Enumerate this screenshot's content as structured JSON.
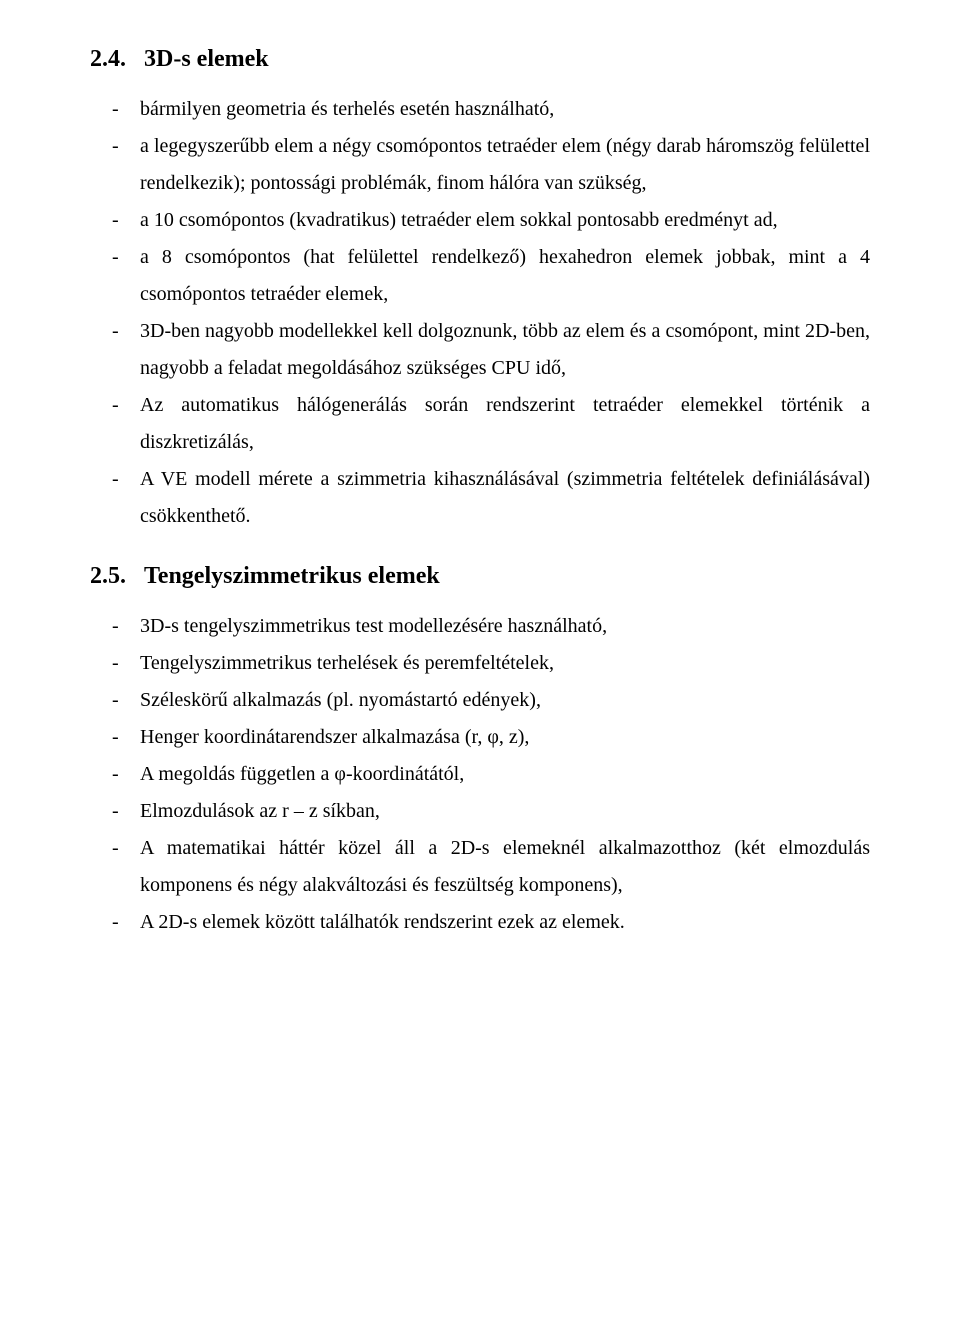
{
  "section24": {
    "number": "2.4.",
    "title": "3D-s elemek",
    "items": [
      "bármilyen geometria és terhelés esetén használható,",
      "a legegyszerűbb elem a négy csomópontos tetraéder elem (négy darab háromszög felülettel rendelkezik); pontossági problémák, finom hálóra van szükség,",
      "a 10 csomópontos (kvadratikus) tetraéder elem sokkal pontosabb eredményt ad,",
      "a 8 csomópontos (hat felülettel rendelkező) hexahedron elemek jobbak, mint a 4 csomópontos tetraéder elemek,",
      "3D-ben nagyobb modellekkel kell dolgoznunk, több az elem és a csomópont, mint 2D-ben, nagyobb a feladat megoldásához szükséges CPU idő,",
      "Az automatikus hálógenerálás során rendszerint tetraéder elemekkel történik a diszkretizálás,",
      "A VE modell mérete a szimmetria kihasználásával (szimmetria feltételek definiálásával) csökkenthető."
    ]
  },
  "section25": {
    "number": "2.5.",
    "title": "Tengelyszimmetrikus elemek",
    "items": [
      "3D-s tengelyszimmetrikus test modellezésére használható,",
      "Tengelyszimmetrikus terhelések és peremfeltételek,",
      "Széleskörű alkalmazás (pl. nyomástartó edények),",
      "Henger koordinátarendszer alkalmazása (r, φ, z),",
      "A megoldás független a φ-koordinátától,",
      "Elmozdulások az r – z síkban,",
      "A matematikai háttér közel áll a 2D-s elemeknél alkalmazotthoz (két elmozdulás komponens és négy alakváltozási és feszültség komponens),",
      "A 2D-s elemek között találhatók rendszerint ezek az elemek."
    ]
  }
}
